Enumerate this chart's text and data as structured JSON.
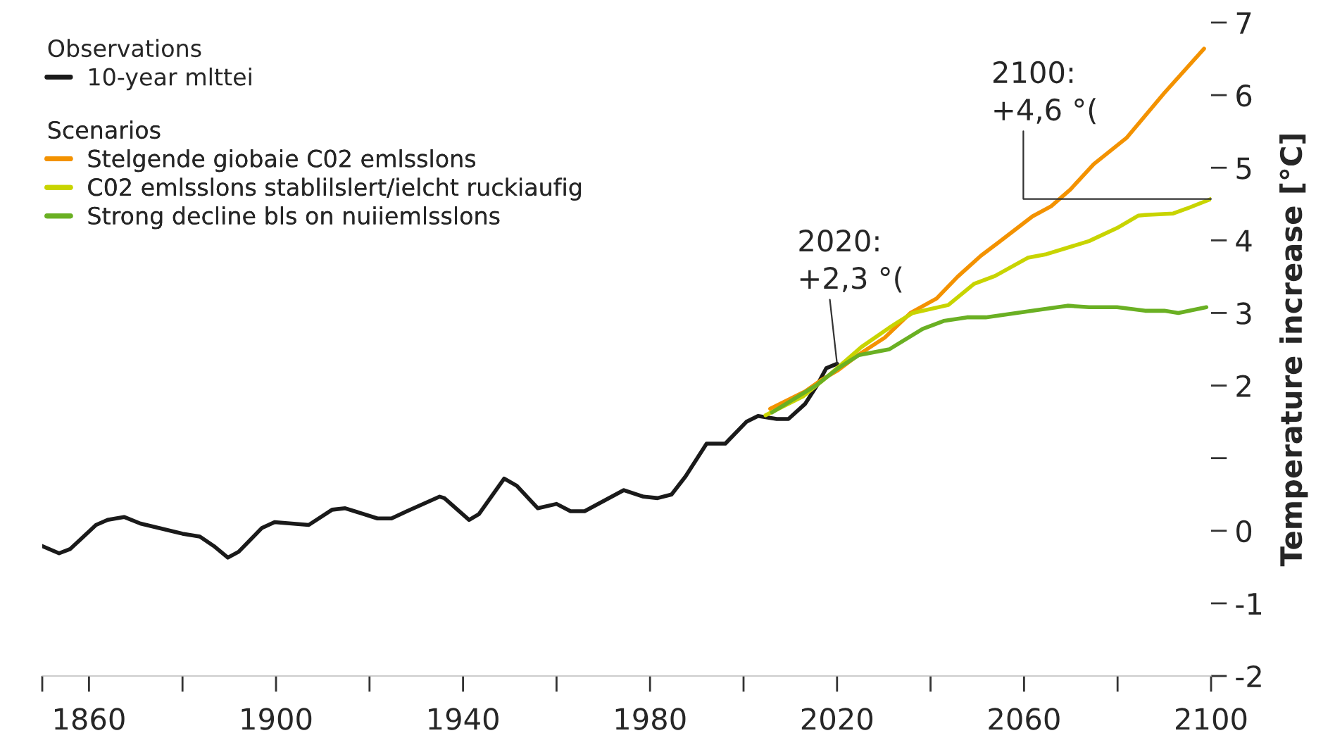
{
  "chart_data": {
    "type": "line",
    "xlabel": null,
    "ylabel": "Temperature increase [°C]",
    "legend_title": [
      "Observations",
      "Scenarios"
    ],
    "legend": "top left",
    "grid": false,
    "line_style": "solid",
    "marker": "none",
    "xlim": [
      1850,
      2100
    ],
    "xticks": [
      {
        "value": 1850,
        "label": null
      },
      1860,
      {
        "value": 1880,
        "label": null
      },
      1900,
      {
        "value": 1920,
        "label": null
      },
      1940,
      {
        "value": 1960,
        "label": null
      },
      1980,
      {
        "value": 2000,
        "label": null
      },
      2020,
      {
        "value": 2040,
        "label": null
      },
      2060,
      {
        "value": 2080,
        "label": null
      },
      2100
    ],
    "ylim": [
      -2,
      7
    ],
    "yticks": [
      -2,
      -1,
      0,
      {
        "value": 1,
        "label": null
      },
      2,
      3,
      4,
      5,
      6,
      7
    ],
    "series": [
      {
        "name": "10-year mlttei",
        "color": "#1a1a1a",
        "x": [
          1850,
          1853.6,
          1856,
          1861.5,
          1864,
          1867.5,
          1871,
          1880,
          1883.7,
          1886.7,
          1889.7,
          1892,
          1897,
          1899.7,
          1907,
          1912,
          1914.8,
          1921.7,
          1924.7,
          1928,
          1935,
          1936,
          1941.3,
          1943.4,
          1948.8,
          1951.5,
          1956,
          1960,
          1963,
          1966,
          1974.4,
          1978.6,
          1981.6,
          1984.6,
          1987.6,
          1992.1,
          1996.1,
          2000.6,
          2003.1,
          2007.1,
          2009.6,
          2013.2,
          2015.7,
          2017.7,
          2020
        ],
        "values": [
          -0.21,
          -0.31,
          -0.25,
          0.08,
          0.15,
          0.19,
          0.1,
          -0.04,
          -0.08,
          -0.21,
          -0.37,
          -0.29,
          0.04,
          0.12,
          0.08,
          0.29,
          0.31,
          0.17,
          0.17,
          0.27,
          0.47,
          0.45,
          0.15,
          0.23,
          0.72,
          0.62,
          0.31,
          0.37,
          0.27,
          0.27,
          0.56,
          0.47,
          0.45,
          0.5,
          0.75,
          1.2,
          1.2,
          1.5,
          1.58,
          1.54,
          1.54,
          1.75,
          2.0,
          2.24,
          2.3
        ]
      },
      {
        "name": "Stelgende giobaie C02 emlsslons",
        "color": "#f39200",
        "x": [
          2005.7,
          2013.2,
          2016.7,
          2020.2,
          2024.7,
          2030.2,
          2035.7,
          2041.3,
          2045.8,
          2050.8,
          2054.3,
          2061.8,
          2065.8,
          2069.9,
          2074.9,
          2081.9,
          2090,
          2098.5
        ],
        "values": [
          1.68,
          1.92,
          2.08,
          2.21,
          2.43,
          2.66,
          3.0,
          3.2,
          3.5,
          3.79,
          3.96,
          4.33,
          4.47,
          4.7,
          5.05,
          5.41,
          6.03,
          6.64
        ]
      },
      {
        "name": "C02 emlsslons stablilslert/ielcht ruckiaufig",
        "color": "#c8d400",
        "x": [
          2004.7,
          2012.7,
          2017.7,
          2025.2,
          2031.7,
          2036.2,
          2043.8,
          2049.3,
          2053.8,
          2060.8,
          2064.8,
          2073.9,
          2079.9,
          2084.4,
          2085.9,
          2091.9,
          2094.9,
          2100
        ],
        "values": [
          1.59,
          1.85,
          2.11,
          2.53,
          2.82,
          3.0,
          3.11,
          3.4,
          3.51,
          3.76,
          3.81,
          3.99,
          4.17,
          4.34,
          4.35,
          4.37,
          4.44,
          4.57
        ]
      },
      {
        "name": "Strong decline bls on nuiiemlsslons",
        "color": "#6ab023",
        "x": [
          2006.1,
          2015.7,
          2020.2,
          2024.7,
          2031.2,
          2038.3,
          2042.8,
          2047.8,
          2051.8,
          2061.8,
          2069.3,
          2073.9,
          2079.9,
          2085.9,
          2090,
          2093,
          2099
        ],
        "values": [
          1.63,
          2.01,
          2.24,
          2.42,
          2.5,
          2.78,
          2.89,
          2.94,
          2.94,
          3.03,
          3.1,
          3.08,
          3.08,
          3.03,
          3.03,
          3.0,
          3.08
        ]
      }
    ],
    "annotations": [
      {
        "text": "2020:\n+2,3 °(",
        "x": 2020,
        "y": 2.3
      },
      {
        "text": "2100:\n+4,6 °(",
        "x": 2100,
        "y": 4.57
      }
    ]
  }
}
